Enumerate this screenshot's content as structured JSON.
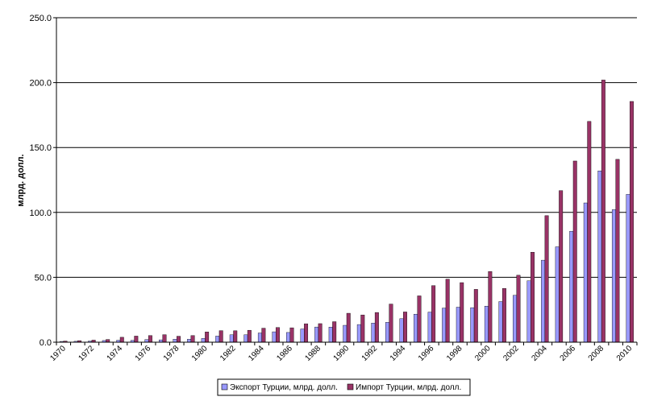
{
  "chart_data": {
    "type": "bar",
    "title": "",
    "xlabel": "",
    "ylabel": "млрд. долл.",
    "ylim": [
      0,
      250
    ],
    "yticks": [
      "0.0",
      "50.0",
      "100.0",
      "150.0",
      "200.0",
      "250.0"
    ],
    "ytick_values": [
      0,
      50,
      100,
      150,
      200,
      250
    ],
    "grid": "horizontal",
    "legend_position": "bottom",
    "categories": [
      "1970",
      "1971",
      "1972",
      "1973",
      "1974",
      "1975",
      "1976",
      "1977",
      "1978",
      "1979",
      "1980",
      "1981",
      "1982",
      "1983",
      "1984",
      "1985",
      "1986",
      "1987",
      "1988",
      "1989",
      "1990",
      "1991",
      "1992",
      "1993",
      "1994",
      "1995",
      "1996",
      "1997",
      "1998",
      "1999",
      "2000",
      "2001",
      "2002",
      "2003",
      "2004",
      "2005",
      "2006",
      "2007",
      "2008",
      "2009",
      "2010"
    ],
    "xtick_labels": [
      "1970",
      "",
      "1972",
      "",
      "1974",
      "",
      "1976",
      "",
      "1978",
      "",
      "1980",
      "",
      "1982",
      "",
      "1984",
      "",
      "1986",
      "",
      "1988",
      "",
      "1990",
      "",
      "1992",
      "",
      "1994",
      "",
      "1996",
      "",
      "1998",
      "",
      "2000",
      "",
      "2002",
      "",
      "2004",
      "",
      "2006",
      "",
      "2008",
      "",
      "2010"
    ],
    "series": [
      {
        "name": "Экспорт Турции, млрд. долл.",
        "color": "#9999ff",
        "values": [
          0.6,
          0.7,
          0.9,
          1.3,
          1.5,
          1.4,
          2.0,
          1.8,
          2.3,
          2.3,
          2.9,
          4.7,
          5.7,
          5.7,
          7.1,
          8.0,
          7.5,
          10.2,
          11.7,
          11.6,
          13.0,
          13.6,
          14.7,
          15.3,
          18.1,
          21.6,
          23.2,
          26.3,
          27.0,
          26.6,
          27.8,
          31.3,
          36.1,
          47.3,
          63.2,
          73.5,
          85.5,
          107.3,
          132.0,
          102.1,
          113.9
        ]
      },
      {
        "name": "Импорт Турции, млрд. долл.",
        "color": "#993366",
        "values": [
          0.9,
          1.2,
          1.6,
          2.1,
          3.8,
          4.7,
          5.1,
          5.8,
          4.6,
          5.1,
          7.9,
          8.9,
          8.8,
          9.2,
          10.8,
          11.3,
          11.1,
          14.2,
          14.3,
          15.8,
          22.3,
          21.0,
          22.9,
          29.4,
          23.3,
          35.7,
          43.6,
          48.6,
          45.9,
          40.7,
          54.5,
          41.4,
          51.6,
          69.3,
          97.5,
          116.8,
          139.6,
          170.1,
          202.0,
          140.9,
          185.5
        ]
      }
    ]
  }
}
